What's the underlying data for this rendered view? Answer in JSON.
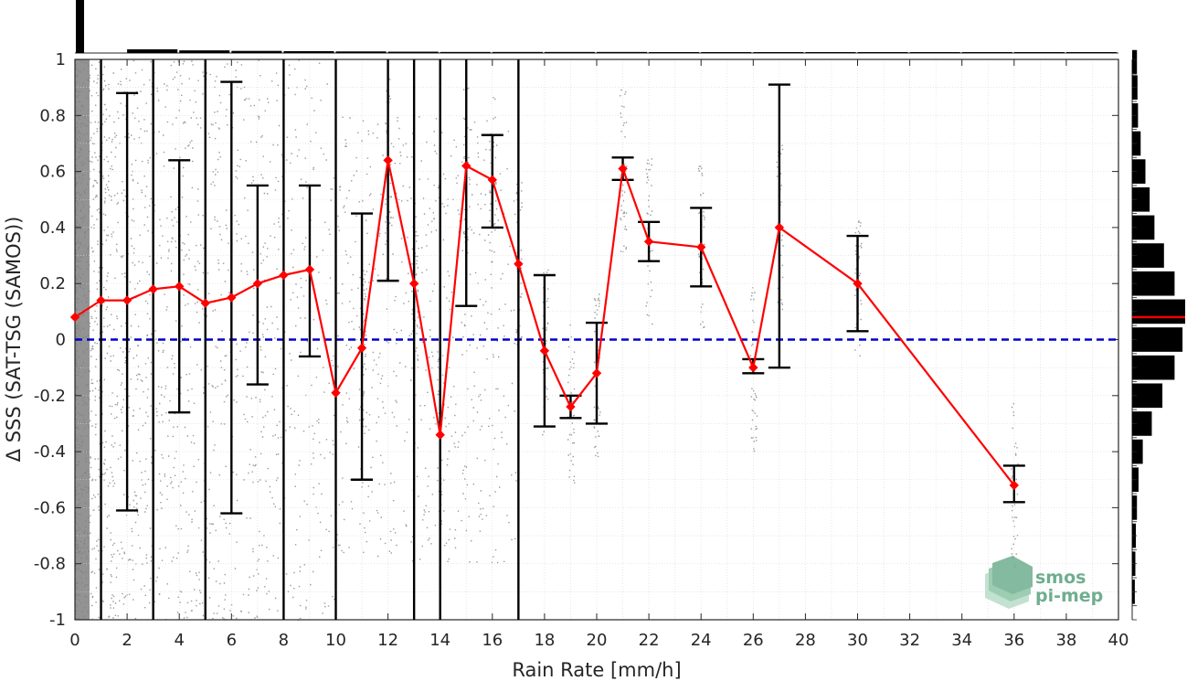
{
  "chart_data": {
    "type": "line",
    "xlabel": "Rain Rate [mm/h]",
    "ylabel": "Δ SSS (SAT-TSG (SAMOS))",
    "xlim": [
      0,
      40
    ],
    "ylim": [
      -1,
      1
    ],
    "xticks": [
      0,
      2,
      4,
      6,
      8,
      10,
      12,
      14,
      16,
      18,
      20,
      22,
      24,
      26,
      28,
      30,
      32,
      34,
      36,
      38,
      40
    ],
    "yticks": [
      -1,
      -0.8,
      -0.6,
      -0.4,
      -0.2,
      0,
      0.2,
      0.4,
      0.6,
      0.8,
      1
    ],
    "ytick_labels": [
      "-1",
      "-0.8",
      "-0.6",
      "-0.4",
      "-0.2",
      "0",
      "0.2",
      "0.4",
      "0.6",
      "0.8",
      "1"
    ],
    "grid": true,
    "series": [
      {
        "color": "#ff0000",
        "marker": "diamond",
        "points": [
          {
            "x": 0,
            "y": 0.08
          },
          {
            "x": 1,
            "y": 0.14,
            "lo": -1.0,
            "hi": 1.0
          },
          {
            "x": 2,
            "y": 0.14,
            "lo": -0.61,
            "hi": 0.88
          },
          {
            "x": 3,
            "y": 0.18,
            "lo": -1.0,
            "hi": 1.0
          },
          {
            "x": 4,
            "y": 0.19,
            "lo": -0.26,
            "hi": 0.64
          },
          {
            "x": 5,
            "y": 0.13,
            "lo": -1.0,
            "hi": 1.0
          },
          {
            "x": 6,
            "y": 0.15,
            "lo": -0.62,
            "hi": 0.92
          },
          {
            "x": 7,
            "y": 0.2,
            "lo": -0.16,
            "hi": 0.55
          },
          {
            "x": 8,
            "y": 0.23,
            "lo": -1.0,
            "hi": 1.0
          },
          {
            "x": 9,
            "y": 0.25,
            "lo": -0.06,
            "hi": 0.55
          },
          {
            "x": 10,
            "y": -0.19,
            "lo": -1.0,
            "hi": 1.0
          },
          {
            "x": 11,
            "y": -0.03,
            "lo": -0.5,
            "hi": 0.45
          },
          {
            "x": 12,
            "y": 0.64,
            "lo": 0.21,
            "hi": 1.0
          },
          {
            "x": 13,
            "y": 0.2,
            "lo": -1.0,
            "hi": 1.0
          },
          {
            "x": 14,
            "y": -0.34,
            "lo": -1.0,
            "hi": 1.0
          },
          {
            "x": 15,
            "y": 0.62,
            "lo": 0.12,
            "hi": 1.0
          },
          {
            "x": 16,
            "y": 0.57,
            "lo": 0.4,
            "hi": 0.73
          },
          {
            "x": 17,
            "y": 0.27,
            "lo": -1.0,
            "hi": 1.0
          },
          {
            "x": 18,
            "y": -0.04,
            "lo": -0.31,
            "hi": 0.23
          },
          {
            "x": 19,
            "y": -0.24,
            "lo": -0.28,
            "hi": -0.2
          },
          {
            "x": 20,
            "y": -0.12,
            "lo": -0.3,
            "hi": 0.06
          },
          {
            "x": 21,
            "y": 0.61,
            "lo": 0.57,
            "hi": 0.65
          },
          {
            "x": 22,
            "y": 0.35,
            "lo": 0.28,
            "hi": 0.42
          },
          {
            "x": 24,
            "y": 0.33,
            "lo": 0.19,
            "hi": 0.47
          },
          {
            "x": 26,
            "y": -0.1,
            "lo": -0.12,
            "hi": -0.07
          },
          {
            "x": 27,
            "y": 0.4,
            "lo": -0.1,
            "hi": 0.91
          },
          {
            "x": 30,
            "y": 0.2,
            "lo": 0.03,
            "hi": 0.37
          },
          {
            "x": 36,
            "y": -0.52,
            "lo": -0.58,
            "hi": -0.45
          }
        ]
      }
    ],
    "reference_line": {
      "y": 0,
      "color": "#0000cc",
      "style": "dashed"
    },
    "scatter_color": "#808080",
    "top_histogram": [
      1.0,
      0.07,
      0.05,
      0.04,
      0.035,
      0.03,
      0.025,
      0.02,
      0.02,
      0.02,
      0.02,
      0.015,
      0.015,
      0.015,
      0.015,
      0.01,
      0.01,
      0.01,
      0.01,
      0.01
    ],
    "right_histogram": {
      "bin_centers": [
        0.99,
        0.9,
        0.8,
        0.7,
        0.6,
        0.5,
        0.4,
        0.3,
        0.2,
        0.1,
        0.0,
        -0.1,
        -0.2,
        -0.3,
        -0.4,
        -0.5,
        -0.6,
        -0.7,
        -0.8,
        -0.9
      ],
      "counts": [
        0.09,
        0.1,
        0.11,
        0.16,
        0.25,
        0.33,
        0.42,
        0.6,
        0.8,
        1.0,
        0.95,
        0.8,
        0.57,
        0.37,
        0.2,
        0.12,
        0.09,
        0.07,
        0.06,
        0.05
      ],
      "median_line": 0.08,
      "median_color": "#ff0000"
    }
  },
  "logo": {
    "line1": "smos",
    "line2": "pi-mep",
    "color": "#6fae8f"
  }
}
